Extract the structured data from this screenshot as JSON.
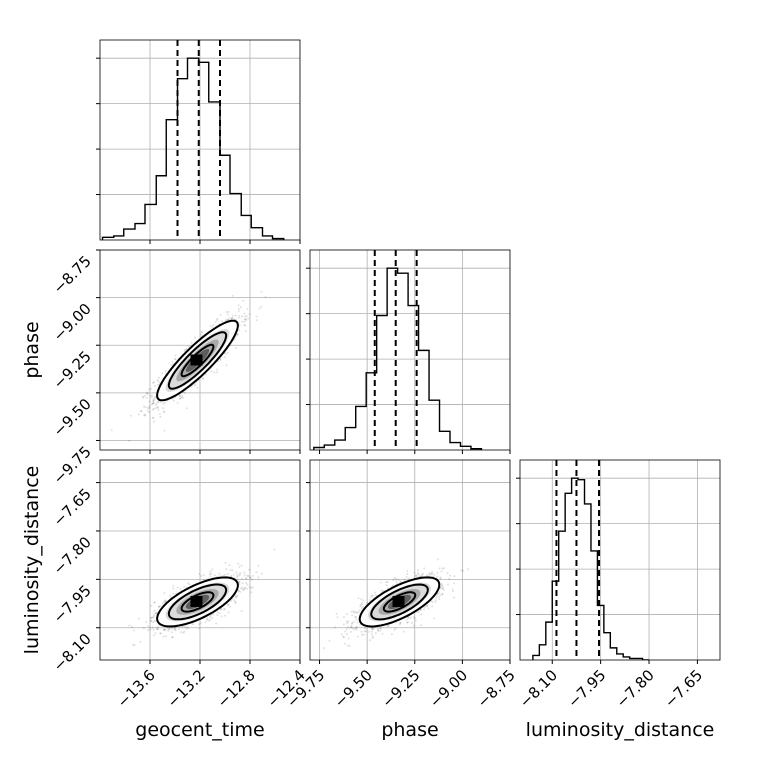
{
  "chart_data": {
    "type": "corner",
    "parameters": [
      "geocent_time",
      "phase",
      "luminosity_distance"
    ],
    "axis_labels": {
      "geocent_time": "geocent_time",
      "phase": "phase",
      "luminosity_distance": "luminosity_distance"
    },
    "ranges": {
      "geocent_time": [
        -14.0,
        -12.4
      ],
      "phase": [
        -9.8,
        -8.75
      ],
      "luminosity_distance": [
        -8.2,
        -7.58
      ]
    },
    "ticks": {
      "geocent_time": [
        -13.6,
        -13.2,
        -12.8,
        -12.4
      ],
      "phase": [
        -9.75,
        -9.5,
        -9.25,
        -9.0,
        -8.75
      ],
      "luminosity_distance": [
        -8.1,
        -7.95,
        -7.8,
        -7.65
      ]
    },
    "tick_labels": {
      "geocent_time": [
        "−13.6",
        "−13.2",
        "−12.8",
        "−12.4"
      ],
      "phase": [
        "−9.75",
        "−9.50",
        "−9.25",
        "−9.00",
        "−8.75"
      ],
      "luminosity_distance": [
        "−8.10",
        "−7.95",
        "−7.80",
        "−7.65"
      ]
    },
    "quantiles": {
      "geocent_time": [
        -13.38,
        -13.21,
        -13.04
      ],
      "phase": [
        -9.46,
        -9.35,
        -9.24
      ],
      "luminosity_distance": [
        -8.087,
        -8.025,
        -7.955
      ]
    },
    "marginals": {
      "geocent_time": {
        "bin_edges": [
          -13.98,
          -13.89,
          -13.81,
          -13.72,
          -13.64,
          -13.55,
          -13.47,
          -13.38,
          -13.3,
          -13.21,
          -13.13,
          -13.04,
          -12.96,
          -12.87,
          -12.79,
          -12.7,
          -12.62,
          -12.53
        ],
        "counts": [
          2,
          3,
          8,
          12,
          26,
          47,
          88,
          118,
          133,
          130,
          101,
          62,
          34,
          18,
          9,
          3,
          1
        ]
      },
      "phase": {
        "bin_edges": [
          -9.78,
          -9.725,
          -9.67,
          -9.615,
          -9.56,
          -9.505,
          -9.45,
          -9.395,
          -9.34,
          -9.285,
          -9.23,
          -9.175,
          -9.12,
          -9.065,
          -9.01,
          -8.955,
          -8.9
        ],
        "counts": [
          2,
          4,
          8,
          18,
          35,
          62,
          108,
          146,
          142,
          116,
          80,
          40,
          15,
          6,
          3,
          1
        ]
      },
      "luminosity_distance": {
        "bin_edges": [
          -8.16,
          -8.14,
          -8.12,
          -8.1,
          -8.08,
          -8.06,
          -8.04,
          -8.02,
          -8.0,
          -7.98,
          -7.96,
          -7.94,
          -7.92,
          -7.9,
          -7.88,
          -7.86,
          -7.84,
          -7.82,
          -7.8
        ],
        "counts": [
          3,
          10,
          25,
          52,
          85,
          110,
          120,
          119,
          103,
          72,
          36,
          18,
          8,
          4,
          2,
          1,
          1,
          0
        ]
      }
    },
    "joint": [
      {
        "x": "geocent_time",
        "y": "phase",
        "center": [
          -13.22,
          -9.33
        ],
        "sd": [
          0.17,
          0.11
        ],
        "corr": 0.88
      },
      {
        "x": "geocent_time",
        "y": "luminosity_distance",
        "center": [
          -13.22,
          -8.02
        ],
        "sd": [
          0.17,
          0.04
        ],
        "corr": 0.68
      },
      {
        "x": "phase",
        "y": "luminosity_distance",
        "center": [
          -9.33,
          -8.02
        ],
        "sd": [
          0.11,
          0.04
        ],
        "corr": 0.7
      }
    ],
    "grid": true
  }
}
